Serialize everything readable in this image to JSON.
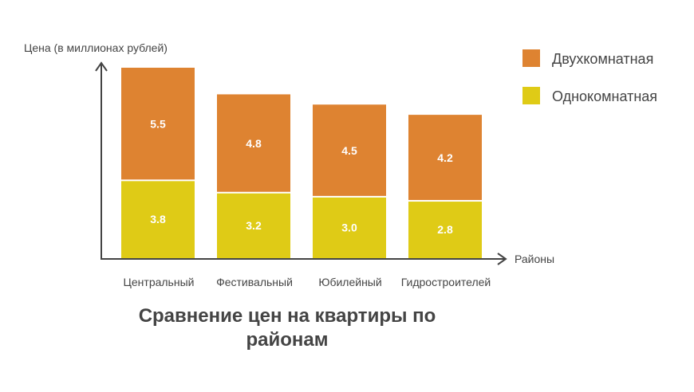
{
  "chart_data": {
    "type": "bar",
    "stacked": true,
    "title": "Сравнение цен на квартиры по районам",
    "xlabel": "Районы",
    "ylabel": "Цена (в миллионах рублей)",
    "categories": [
      "Центральный",
      "Фестивальный",
      "Юбилейный",
      "Гидростроителей"
    ],
    "series": [
      {
        "name": "Однокомнатная",
        "values": [
          3.8,
          3.2,
          3.0,
          2.8
        ],
        "color": "#DFCB16"
      },
      {
        "name": "Двухкомнатная",
        "values": [
          5.5,
          4.8,
          4.5,
          4.2
        ],
        "color": "#DE8331"
      }
    ],
    "ylim": [
      0,
      9.3
    ],
    "grid": false,
    "legend_position": "top-right",
    "axis_color": "#444444"
  }
}
